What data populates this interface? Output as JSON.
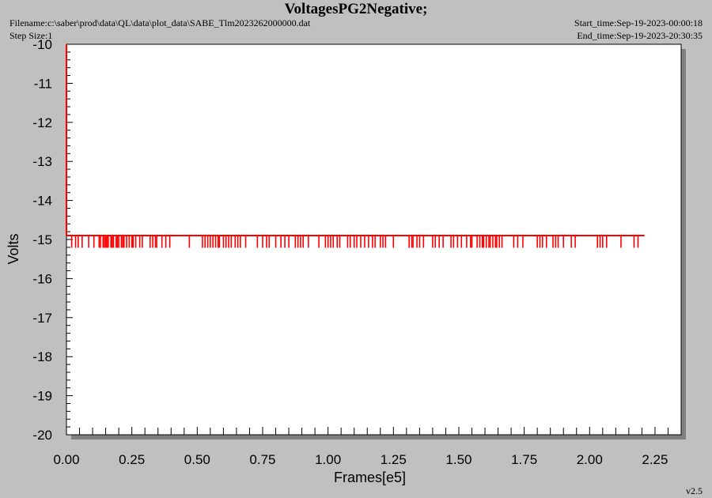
{
  "header": {
    "title": "VoltagesPG2Negative;",
    "filename": "Filename:c:\\saber\\prod\\data\\QL\\data\\plot_data\\SABE_Tlm2023262000000.dat",
    "step_size": "Step Size:1",
    "start_time": "Start_time:Sep-19-2023-00:00:18",
    "end_time": "End_time:Sep-19-2023-20:30:35"
  },
  "version": "v2.5",
  "colors": {
    "background": "#c0c0c0",
    "plot_area": "#ffffff",
    "series": "#ff0000",
    "shadow": "#808080"
  },
  "chart_data": {
    "type": "line",
    "title": "VoltagesPG2Negative;",
    "xlabel": "Frames[e5]",
    "ylabel": "Volts",
    "xlim": [
      0.0,
      2.35
    ],
    "ylim": [
      -20,
      -10
    ],
    "x_ticks": [
      "0.00",
      "0.25",
      "0.50",
      "0.75",
      "1.00",
      "1.25",
      "1.50",
      "1.75",
      "2.00",
      "2.25"
    ],
    "y_ticks": [
      "-10",
      "-11",
      "-12",
      "-13",
      "-14",
      "-15",
      "-16",
      "-17",
      "-18",
      "-19",
      "-20"
    ],
    "grid": false,
    "series": [
      {
        "baseline_value": -14.9,
        "glitch_value": -15.15,
        "x_start": 0.0,
        "x_end": 2.21,
        "startup_from": -10.0,
        "glitch_x": [
          0.02,
          0.035,
          0.045,
          0.06,
          0.085,
          0.105,
          0.125,
          0.13,
          0.14,
          0.145,
          0.15,
          0.155,
          0.16,
          0.17,
          0.175,
          0.18,
          0.19,
          0.195,
          0.2,
          0.21,
          0.215,
          0.22,
          0.23,
          0.24,
          0.25,
          0.255,
          0.265,
          0.28,
          0.29,
          0.32,
          0.33,
          0.34,
          0.345,
          0.365,
          0.38,
          0.395,
          0.47,
          0.52,
          0.53,
          0.54,
          0.55,
          0.56,
          0.57,
          0.58,
          0.585,
          0.6,
          0.61,
          0.62,
          0.63,
          0.645,
          0.655,
          0.665,
          0.685,
          0.73,
          0.75,
          0.765,
          0.775,
          0.8,
          0.82,
          0.835,
          0.85,
          0.875,
          0.885,
          0.895,
          0.905,
          0.925,
          0.965,
          0.99,
          1.0,
          1.01,
          1.02,
          1.035,
          1.045,
          1.075,
          1.085,
          1.1,
          1.11,
          1.125,
          1.14,
          1.155,
          1.17,
          1.18,
          1.2,
          1.21,
          1.22,
          1.25,
          1.31,
          1.32,
          1.325,
          1.34,
          1.35,
          1.365,
          1.4,
          1.41,
          1.425,
          1.44,
          1.47,
          1.48,
          1.495,
          1.51,
          1.53,
          1.545,
          1.55,
          1.57,
          1.58,
          1.59,
          1.595,
          1.605,
          1.615,
          1.62,
          1.63,
          1.64,
          1.645,
          1.655,
          1.665,
          1.71,
          1.725,
          1.745,
          1.8,
          1.81,
          1.82,
          1.835,
          1.86,
          1.87,
          1.88,
          1.9,
          1.93,
          1.945,
          2.03,
          2.04,
          2.05,
          2.065,
          2.12,
          2.17,
          2.185
        ]
      }
    ]
  }
}
